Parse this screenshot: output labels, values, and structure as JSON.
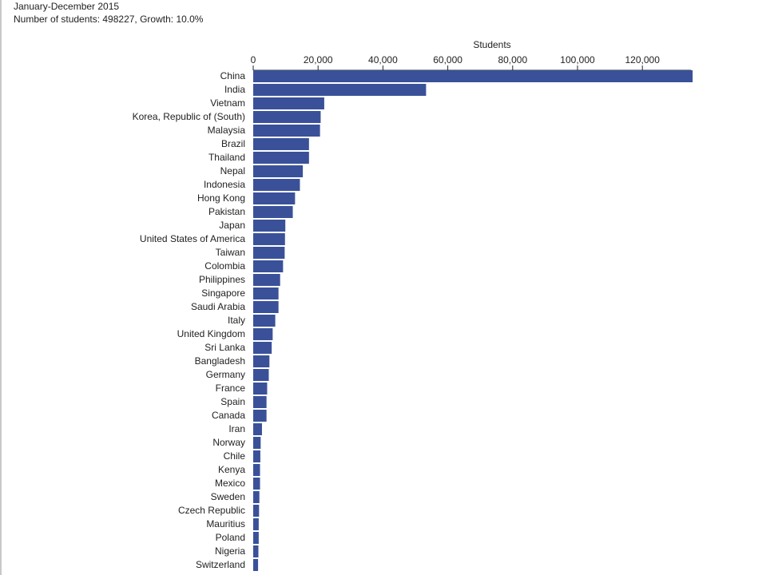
{
  "header": {
    "period": "January-December 2015",
    "summary": "Number of students: 498227, Growth: 10.0%"
  },
  "colors": {
    "bar": "#3a5199"
  },
  "chart_data": {
    "type": "bar",
    "orientation": "horizontal",
    "title": "",
    "xlabel": "Students",
    "ylabel": "",
    "xlim": [
      0,
      135000
    ],
    "ticks": [
      0,
      20000,
      40000,
      60000,
      80000,
      100000,
      120000
    ],
    "tick_labels": [
      "0",
      "20,000",
      "40,000",
      "60,000",
      "80,000",
      "100,000",
      "120,000"
    ],
    "axis_position": "top",
    "grid": false,
    "categories": [
      "China",
      "India",
      "Vietnam",
      "Korea, Republic of (South)",
      "Malaysia",
      "Brazil",
      "Thailand",
      "Nepal",
      "Indonesia",
      "Hong Kong",
      "Pakistan",
      "Japan",
      "United States of America",
      "Taiwan",
      "Colombia",
      "Philippines",
      "Singapore",
      "Saudi Arabia",
      "Italy",
      "United Kingdom",
      "Sri Lanka",
      "Bangladesh",
      "Germany",
      "France",
      "Spain",
      "Canada",
      "Iran",
      "Norway",
      "Chile",
      "Kenya",
      "Mexico",
      "Sweden",
      "Czech Republic",
      "Mauritius",
      "Poland",
      "Nigeria",
      "Switzerland"
    ],
    "values": [
      135500,
      53300,
      21900,
      20800,
      20600,
      17200,
      17200,
      15300,
      14400,
      12900,
      12200,
      9900,
      9800,
      9700,
      9200,
      8300,
      7800,
      7800,
      6800,
      6000,
      5700,
      5000,
      4800,
      4300,
      4100,
      4100,
      2700,
      2300,
      2200,
      2100,
      2100,
      1900,
      1800,
      1700,
      1700,
      1600,
      1500
    ]
  }
}
